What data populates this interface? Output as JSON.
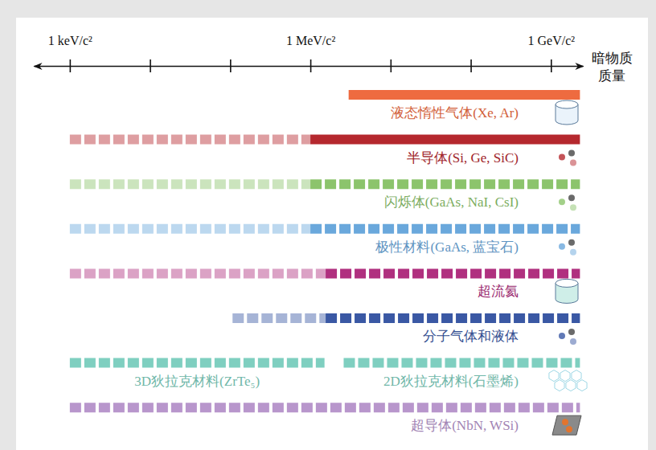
{
  "chart_data": {
    "type": "range_bar",
    "x_label": "暗物质质量",
    "log": "x",
    "xlim": [
      355,
      2500000000
    ],
    "xticks": [
      {
        "value": 1000,
        "label": "1 keV/c²"
      },
      {
        "value": 10000,
        "label": null
      },
      {
        "value": 100000,
        "label": null
      },
      {
        "value": 1000000,
        "label": "1 MeV/c²"
      },
      {
        "value": 10000000,
        "label": null
      },
      {
        "value": 100000000,
        "label": null
      },
      {
        "value": 1000000000,
        "label": "1 GeV/c²"
      }
    ],
    "series": [
      {
        "name": "液态惰性气体(Xe, Ar)",
        "color": "#ee6b40",
        "segments": [
          {
            "values": [
              3000000,
              2300000000
            ],
            "line_style": "solid"
          }
        ]
      },
      {
        "name": "半导体(Si, Ge, SiC)",
        "color": "#b5282e",
        "segments": [
          {
            "values": [
              1000,
              1000000
            ],
            "line_style": "faint"
          },
          {
            "values": [
              1000000,
              2300000000
            ],
            "line_style": "solid"
          }
        ]
      },
      {
        "name": "闪烁体(GaAs, NaI, CsI)",
        "color": "#8cc46c",
        "segments": [
          {
            "values": [
              1000,
              1000000
            ],
            "line_style": "faint"
          },
          {
            "values": [
              1000000,
              2300000000
            ],
            "line_style": "dashed"
          }
        ]
      },
      {
        "name": "极性材料(GaAs, 蓝宝石)",
        "color": "#6aa8dc",
        "segments": [
          {
            "values": [
              1000,
              1000000
            ],
            "line_style": "faint"
          },
          {
            "values": [
              1000000,
              2300000000
            ],
            "line_style": "dashed"
          }
        ]
      },
      {
        "name": "超流氦",
        "color": "#b0307f",
        "segments": [
          {
            "values": [
              1000,
              1550000
            ],
            "line_style": "faint"
          },
          {
            "values": [
              1550000,
              2300000000
            ],
            "line_style": "dashed"
          }
        ]
      },
      {
        "name": "分子气体和液体",
        "color": "#3a58a4",
        "segments": [
          {
            "values": [
              107000,
              1550000
            ],
            "line_style": "faint"
          },
          {
            "values": [
              1550000,
              2300000000
            ],
            "line_style": "dashed"
          }
        ]
      },
      {
        "color": "#7fcfc0",
        "segments": [
          {
            "name": "3D狄拉克材料(ZrTe₅)",
            "values": [
              1000,
              1500000
            ],
            "line_style": "dashed"
          },
          {
            "name": "2D狄拉克材料(石墨烯)",
            "values": [
              2600000,
              2300000000
            ],
            "line_style": "dashed"
          }
        ]
      },
      {
        "name": "超导体(NbN, WSi)",
        "color": "#b896cc",
        "segments": [
          {
            "values": [
              1000,
              2300000000
            ],
            "line_style": "dashed"
          }
        ]
      }
    ]
  }
}
